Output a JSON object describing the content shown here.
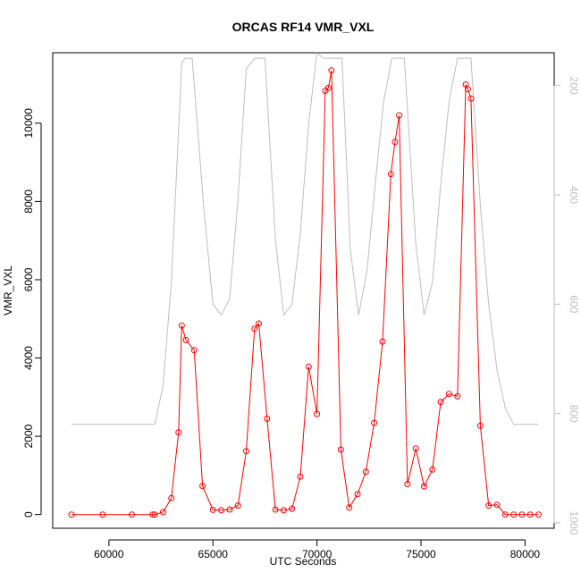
{
  "chart_data": {
    "type": "line",
    "title": "ORCAS RF14 VMR_VXL",
    "xlabel": "UTC Seconds",
    "ylabel": "VMR_VXL",
    "xlim": [
      57300,
      81400
    ],
    "ylim": [
      -350,
      11800
    ],
    "x_ticks": [
      60000,
      65000,
      70000,
      75000,
      80000
    ],
    "y_ticks": [
      0,
      2000,
      4000,
      6000,
      8000,
      10000
    ],
    "y2_ticks": [
      200,
      400,
      600,
      800,
      1000
    ],
    "y2lim": [
      1010,
      140
    ],
    "y2_reversed": true,
    "grid": false,
    "series": [
      {
        "color": "#ff0000",
        "marker": "open-circle",
        "points": [
          [
            58200,
            0
          ],
          [
            59700,
            0
          ],
          [
            61100,
            0
          ],
          [
            62100,
            0
          ],
          [
            62200,
            0
          ],
          [
            62600,
            60
          ],
          [
            63000,
            420
          ],
          [
            63350,
            2100
          ],
          [
            63500,
            4830
          ],
          [
            63700,
            4460
          ],
          [
            64100,
            4200
          ],
          [
            64500,
            730
          ],
          [
            65000,
            120
          ],
          [
            65400,
            110
          ],
          [
            65800,
            130
          ],
          [
            66200,
            230
          ],
          [
            66600,
            1620
          ],
          [
            67000,
            4750
          ],
          [
            67200,
            4880
          ],
          [
            67600,
            2450
          ],
          [
            68000,
            130
          ],
          [
            68400,
            110
          ],
          [
            68800,
            150
          ],
          [
            69200,
            970
          ],
          [
            69600,
            3780
          ],
          [
            70000,
            2570
          ],
          [
            70400,
            10830
          ],
          [
            70550,
            10900
          ],
          [
            70700,
            11350
          ],
          [
            71150,
            1660
          ],
          [
            71550,
            180
          ],
          [
            71950,
            520
          ],
          [
            72350,
            1090
          ],
          [
            72750,
            2340
          ],
          [
            73150,
            4420
          ],
          [
            73550,
            8700
          ],
          [
            73750,
            9520
          ],
          [
            73950,
            10200
          ],
          [
            74350,
            780
          ],
          [
            74750,
            1690
          ],
          [
            75150,
            720
          ],
          [
            75550,
            1150
          ],
          [
            75950,
            2880
          ],
          [
            76350,
            3080
          ],
          [
            76750,
            3020
          ],
          [
            77150,
            10990
          ],
          [
            77250,
            10870
          ],
          [
            77400,
            10630
          ],
          [
            77850,
            2270
          ],
          [
            78250,
            230
          ],
          [
            78650,
            250
          ],
          [
            79050,
            0
          ],
          [
            79450,
            0
          ],
          [
            79850,
            0
          ],
          [
            80250,
            0
          ],
          [
            80650,
            0
          ]
        ]
      },
      {
        "color": "#bebebe",
        "axis": "right",
        "points": [
          [
            58200,
            820
          ],
          [
            62200,
            820
          ],
          [
            62600,
            750
          ],
          [
            63000,
            560
          ],
          [
            63500,
            160
          ],
          [
            63650,
            150
          ],
          [
            64000,
            150
          ],
          [
            64550,
            420
          ],
          [
            65000,
            600
          ],
          [
            65400,
            620
          ],
          [
            65800,
            590
          ],
          [
            66200,
            410
          ],
          [
            66600,
            170
          ],
          [
            67000,
            150
          ],
          [
            67500,
            150
          ],
          [
            68000,
            480
          ],
          [
            68400,
            620
          ],
          [
            68800,
            600
          ],
          [
            69200,
            470
          ],
          [
            69600,
            270
          ],
          [
            70000,
            140
          ],
          [
            70300,
            150
          ],
          [
            71200,
            150
          ],
          [
            71600,
            500
          ],
          [
            72000,
            620
          ],
          [
            72400,
            540
          ],
          [
            72800,
            380
          ],
          [
            73200,
            230
          ],
          [
            73600,
            150
          ],
          [
            74200,
            150
          ],
          [
            74750,
            490
          ],
          [
            75150,
            620
          ],
          [
            75550,
            560
          ],
          [
            75950,
            380
          ],
          [
            76350,
            230
          ],
          [
            76750,
            150
          ],
          [
            77400,
            150
          ],
          [
            77850,
            420
          ],
          [
            78250,
            600
          ],
          [
            78650,
            720
          ],
          [
            79050,
            790
          ],
          [
            79450,
            820
          ],
          [
            80650,
            820
          ]
        ]
      }
    ]
  }
}
